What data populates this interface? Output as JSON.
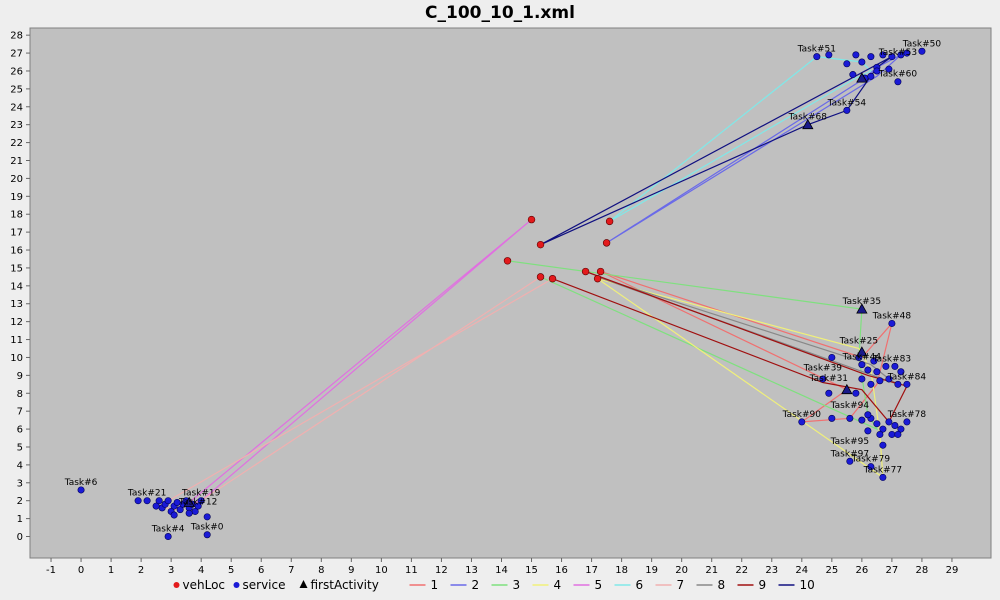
{
  "chart_data": {
    "type": "scatter",
    "title": "C_100_10_1.xml",
    "xlabel": "",
    "ylabel": "",
    "xlim": [
      -1.7,
      30.3
    ],
    "ylim": [
      -1.2,
      28.4
    ],
    "x_ticks": [
      -1,
      0,
      1,
      2,
      3,
      4,
      5,
      6,
      7,
      8,
      9,
      10,
      11,
      12,
      13,
      14,
      15,
      16,
      17,
      18,
      19,
      20,
      21,
      22,
      23,
      24,
      25,
      26,
      27,
      28,
      29
    ],
    "y_ticks": [
      0,
      1,
      2,
      3,
      4,
      5,
      6,
      7,
      8,
      9,
      10,
      11,
      12,
      13,
      14,
      15,
      16,
      17,
      18,
      19,
      20,
      21,
      22,
      23,
      24,
      25,
      26,
      27,
      28
    ],
    "grid": false,
    "plot_background": "#c0c0c0",
    "legend": {
      "position": "bottom",
      "items": [
        {
          "label": "vehLoc",
          "marker": "circle",
          "color": "#e31a1c"
        },
        {
          "label": "service",
          "marker": "circle",
          "color": "#1a1ad6"
        },
        {
          "label": "firstActivity",
          "marker": "triangle",
          "color": "#000000"
        },
        {
          "label": "1",
          "marker": "line",
          "color": "#f07070"
        },
        {
          "label": "2",
          "marker": "line",
          "color": "#6a6ae8"
        },
        {
          "label": "3",
          "marker": "line",
          "color": "#7fe07f"
        },
        {
          "label": "4",
          "marker": "line",
          "color": "#f0f07a"
        },
        {
          "label": "5",
          "marker": "line",
          "color": "#e070e0"
        },
        {
          "label": "6",
          "marker": "line",
          "color": "#80e8e8"
        },
        {
          "label": "7",
          "marker": "line",
          "color": "#f0b0b0"
        },
        {
          "label": "8",
          "marker": "line",
          "color": "#888888"
        },
        {
          "label": "9",
          "marker": "line",
          "color": "#a01010"
        },
        {
          "label": "10",
          "marker": "line",
          "color": "#101080"
        }
      ]
    },
    "vehicle_locations": [
      [
        15.0,
        17.7
      ],
      [
        15.3,
        16.3
      ],
      [
        17.6,
        17.6
      ],
      [
        17.5,
        16.4
      ],
      [
        14.2,
        15.4
      ],
      [
        15.3,
        14.5
      ],
      [
        15.7,
        14.4
      ],
      [
        16.8,
        14.8
      ],
      [
        17.3,
        14.8
      ],
      [
        17.2,
        14.4
      ]
    ],
    "service_points": [
      [
        0,
        2.6
      ],
      [
        1.9,
        2.0
      ],
      [
        2.2,
        2.0
      ],
      [
        2.5,
        1.7
      ],
      [
        2.6,
        2.0
      ],
      [
        2.7,
        1.6
      ],
      [
        2.8,
        1.8
      ],
      [
        2.9,
        2.0
      ],
      [
        3.0,
        1.4
      ],
      [
        3.1,
        1.7
      ],
      [
        3.2,
        1.9
      ],
      [
        3.3,
        1.5
      ],
      [
        3.4,
        1.8
      ],
      [
        3.5,
        2.0
      ],
      [
        3.6,
        1.6
      ],
      [
        3.7,
        1.8
      ],
      [
        3.8,
        1.4
      ],
      [
        3.9,
        1.7
      ],
      [
        4.0,
        2.0
      ],
      [
        4.2,
        1.1
      ],
      [
        2.9,
        0
      ],
      [
        4.2,
        0.1
      ],
      [
        3.1,
        1.2
      ],
      [
        3.6,
        1.3
      ],
      [
        24.5,
        26.8
      ],
      [
        24.9,
        26.9
      ],
      [
        25.5,
        26.4
      ],
      [
        25.8,
        26.9
      ],
      [
        26.0,
        26.5
      ],
      [
        26.3,
        26.8
      ],
      [
        26.5,
        26.2
      ],
      [
        26.7,
        26.9
      ],
      [
        27.0,
        26.8
      ],
      [
        27.3,
        26.9
      ],
      [
        27.5,
        27.0
      ],
      [
        28.0,
        27.1
      ],
      [
        25.7,
        25.8
      ],
      [
        26.1,
        25.6
      ],
      [
        26.5,
        26.0
      ],
      [
        26.9,
        26.1
      ],
      [
        27.2,
        25.4
      ],
      [
        25.5,
        23.8
      ],
      [
        26.3,
        25.7
      ],
      [
        27.0,
        11.9
      ],
      [
        25.9,
        10.0
      ],
      [
        25.0,
        10.0
      ],
      [
        24.7,
        8.8
      ],
      [
        24.9,
        8.0
      ],
      [
        26.0,
        9.6
      ],
      [
        26.2,
        9.3
      ],
      [
        26.5,
        9.2
      ],
      [
        26.8,
        9.5
      ],
      [
        27.1,
        9.5
      ],
      [
        27.3,
        9.2
      ],
      [
        26.0,
        8.8
      ],
      [
        26.3,
        8.5
      ],
      [
        26.6,
        8.7
      ],
      [
        26.9,
        8.8
      ],
      [
        27.2,
        8.5
      ],
      [
        27.5,
        8.5
      ],
      [
        25.8,
        8.0
      ],
      [
        26.4,
        9.8
      ],
      [
        24.0,
        6.4
      ],
      [
        25.0,
        6.6
      ],
      [
        25.6,
        6.6
      ],
      [
        26.0,
        6.5
      ],
      [
        26.3,
        6.6
      ],
      [
        26.5,
        6.3
      ],
      [
        26.7,
        6.0
      ],
      [
        26.9,
        6.4
      ],
      [
        27.1,
        6.2
      ],
      [
        27.3,
        6.0
      ],
      [
        27.5,
        6.4
      ],
      [
        26.2,
        5.9
      ],
      [
        26.6,
        5.7
      ],
      [
        27.0,
        5.7
      ],
      [
        27.2,
        5.7
      ],
      [
        26.7,
        5.1
      ],
      [
        25.6,
        4.2
      ],
      [
        26.3,
        3.9
      ],
      [
        26.7,
        3.3
      ],
      [
        26.2,
        6.8
      ]
    ],
    "first_activity": [
      [
        24.2,
        23.0
      ],
      [
        26.0,
        12.7
      ],
      [
        25.5,
        8.2
      ],
      [
        26.0,
        10.3
      ],
      [
        3.6,
        1.9
      ],
      [
        26.0,
        25.6
      ]
    ],
    "routes": [
      {
        "name": "1",
        "color": "#f07070",
        "points": [
          [
            17.3,
            14.8
          ],
          [
            25.5,
            8.2
          ],
          [
            24.0,
            6.4
          ],
          [
            25.6,
            6.6
          ],
          [
            26.5,
            8.5
          ],
          [
            27.0,
            11.9
          ],
          [
            26.0,
            10.0
          ],
          [
            17.3,
            14.8
          ]
        ]
      },
      {
        "name": "2",
        "color": "#6a6ae8",
        "points": [
          [
            17.5,
            16.4
          ],
          [
            26.1,
            25.6
          ],
          [
            26.5,
            26.2
          ],
          [
            27.3,
            26.9
          ],
          [
            26.5,
            25.7
          ],
          [
            17.5,
            16.4
          ]
        ]
      },
      {
        "name": "3",
        "color": "#7fe07f",
        "points": [
          [
            14.2,
            15.4
          ],
          [
            26.0,
            12.7
          ],
          [
            25.9,
            10.0
          ],
          [
            26.2,
            6.8
          ],
          [
            26.5,
            6.0
          ],
          [
            15.3,
            14.5
          ]
        ]
      },
      {
        "name": "4",
        "color": "#f0f07a",
        "points": [
          [
            17.2,
            14.4
          ],
          [
            25.9,
            10.5
          ],
          [
            26.3,
            9.3
          ],
          [
            26.6,
            5.7
          ],
          [
            26.7,
            3.3
          ],
          [
            17.2,
            14.4
          ]
        ]
      },
      {
        "name": "5",
        "color": "#e070e0",
        "points": [
          [
            15.0,
            17.7
          ],
          [
            3.6,
            1.9
          ],
          [
            3.2,
            1.6
          ],
          [
            4.0,
            2.0
          ],
          [
            15.0,
            17.7
          ]
        ]
      },
      {
        "name": "6",
        "color": "#80e8e8",
        "points": [
          [
            17.6,
            17.6
          ],
          [
            24.5,
            26.8
          ],
          [
            26.0,
            26.5
          ],
          [
            26.3,
            26.0
          ],
          [
            25.8,
            25.6
          ],
          [
            17.6,
            17.6
          ]
        ]
      },
      {
        "name": "7",
        "color": "#f0b0b0",
        "points": [
          [
            15.3,
            14.5
          ],
          [
            3.9,
            1.9
          ],
          [
            3.1,
            1.5
          ],
          [
            2.6,
            1.7
          ],
          [
            15.7,
            14.4
          ]
        ]
      },
      {
        "name": "8",
        "color": "#888888",
        "points": [
          [
            17.2,
            14.5
          ],
          [
            26.3,
            9.6
          ],
          [
            26.9,
            8.8
          ],
          [
            27.2,
            8.5
          ],
          [
            17.2,
            14.5
          ]
        ]
      },
      {
        "name": "9",
        "color": "#a01010",
        "points": [
          [
            15.7,
            14.4
          ],
          [
            24.7,
            8.6
          ],
          [
            26.0,
            8.2
          ],
          [
            26.9,
            6.4
          ],
          [
            27.5,
            8.4
          ],
          [
            26.2,
            9.0
          ],
          [
            16.8,
            14.8
          ]
        ]
      },
      {
        "name": "10",
        "color": "#101080",
        "points": [
          [
            15.3,
            16.3
          ],
          [
            24.2,
            23.0
          ],
          [
            25.5,
            23.8
          ],
          [
            26.5,
            26.2
          ],
          [
            27.0,
            26.8
          ],
          [
            15.3,
            16.3
          ]
        ]
      }
    ],
    "annotations": [
      {
        "text": "Task#6",
        "x": 0.0,
        "y": 2.6
      },
      {
        "text": "Task#21",
        "x": 2.2,
        "y": 2.0
      },
      {
        "text": "Task#19",
        "x": 4.0,
        "y": 2.0
      },
      {
        "text": "Task#12",
        "x": 3.9,
        "y": 1.5
      },
      {
        "text": "Task#4",
        "x": 2.9,
        "y": 0.0
      },
      {
        "text": "Task#0",
        "x": 4.2,
        "y": 0.1
      },
      {
        "text": "Task#51",
        "x": 24.5,
        "y": 26.8
      },
      {
        "text": "Task#50",
        "x": 28.0,
        "y": 27.1
      },
      {
        "text": "Task#53",
        "x": 27.2,
        "y": 26.6
      },
      {
        "text": "Task#60",
        "x": 27.2,
        "y": 25.4
      },
      {
        "text": "Task#54",
        "x": 25.5,
        "y": 23.8
      },
      {
        "text": "Task#68",
        "x": 24.2,
        "y": 23.0
      },
      {
        "text": "Task#35",
        "x": 26.0,
        "y": 12.7
      },
      {
        "text": "Task#48",
        "x": 27.0,
        "y": 11.9
      },
      {
        "text": "Task#25",
        "x": 25.9,
        "y": 10.5
      },
      {
        "text": "Task#44",
        "x": 26.0,
        "y": 9.6
      },
      {
        "text": "Task#83",
        "x": 27.0,
        "y": 9.5
      },
      {
        "text": "Task#39",
        "x": 24.7,
        "y": 9.0
      },
      {
        "text": "Task#31",
        "x": 24.9,
        "y": 8.4
      },
      {
        "text": "Task#84",
        "x": 27.5,
        "y": 8.5
      },
      {
        "text": "Task#94",
        "x": 25.6,
        "y": 6.9
      },
      {
        "text": "Task#90",
        "x": 24.0,
        "y": 6.4
      },
      {
        "text": "Task#78",
        "x": 27.5,
        "y": 6.4
      },
      {
        "text": "Task#95",
        "x": 25.6,
        "y": 4.9
      },
      {
        "text": "Task#97",
        "x": 25.6,
        "y": 4.2
      },
      {
        "text": "Task#79",
        "x": 26.3,
        "y": 3.9
      },
      {
        "text": "Task#77",
        "x": 26.7,
        "y": 3.3
      }
    ]
  }
}
